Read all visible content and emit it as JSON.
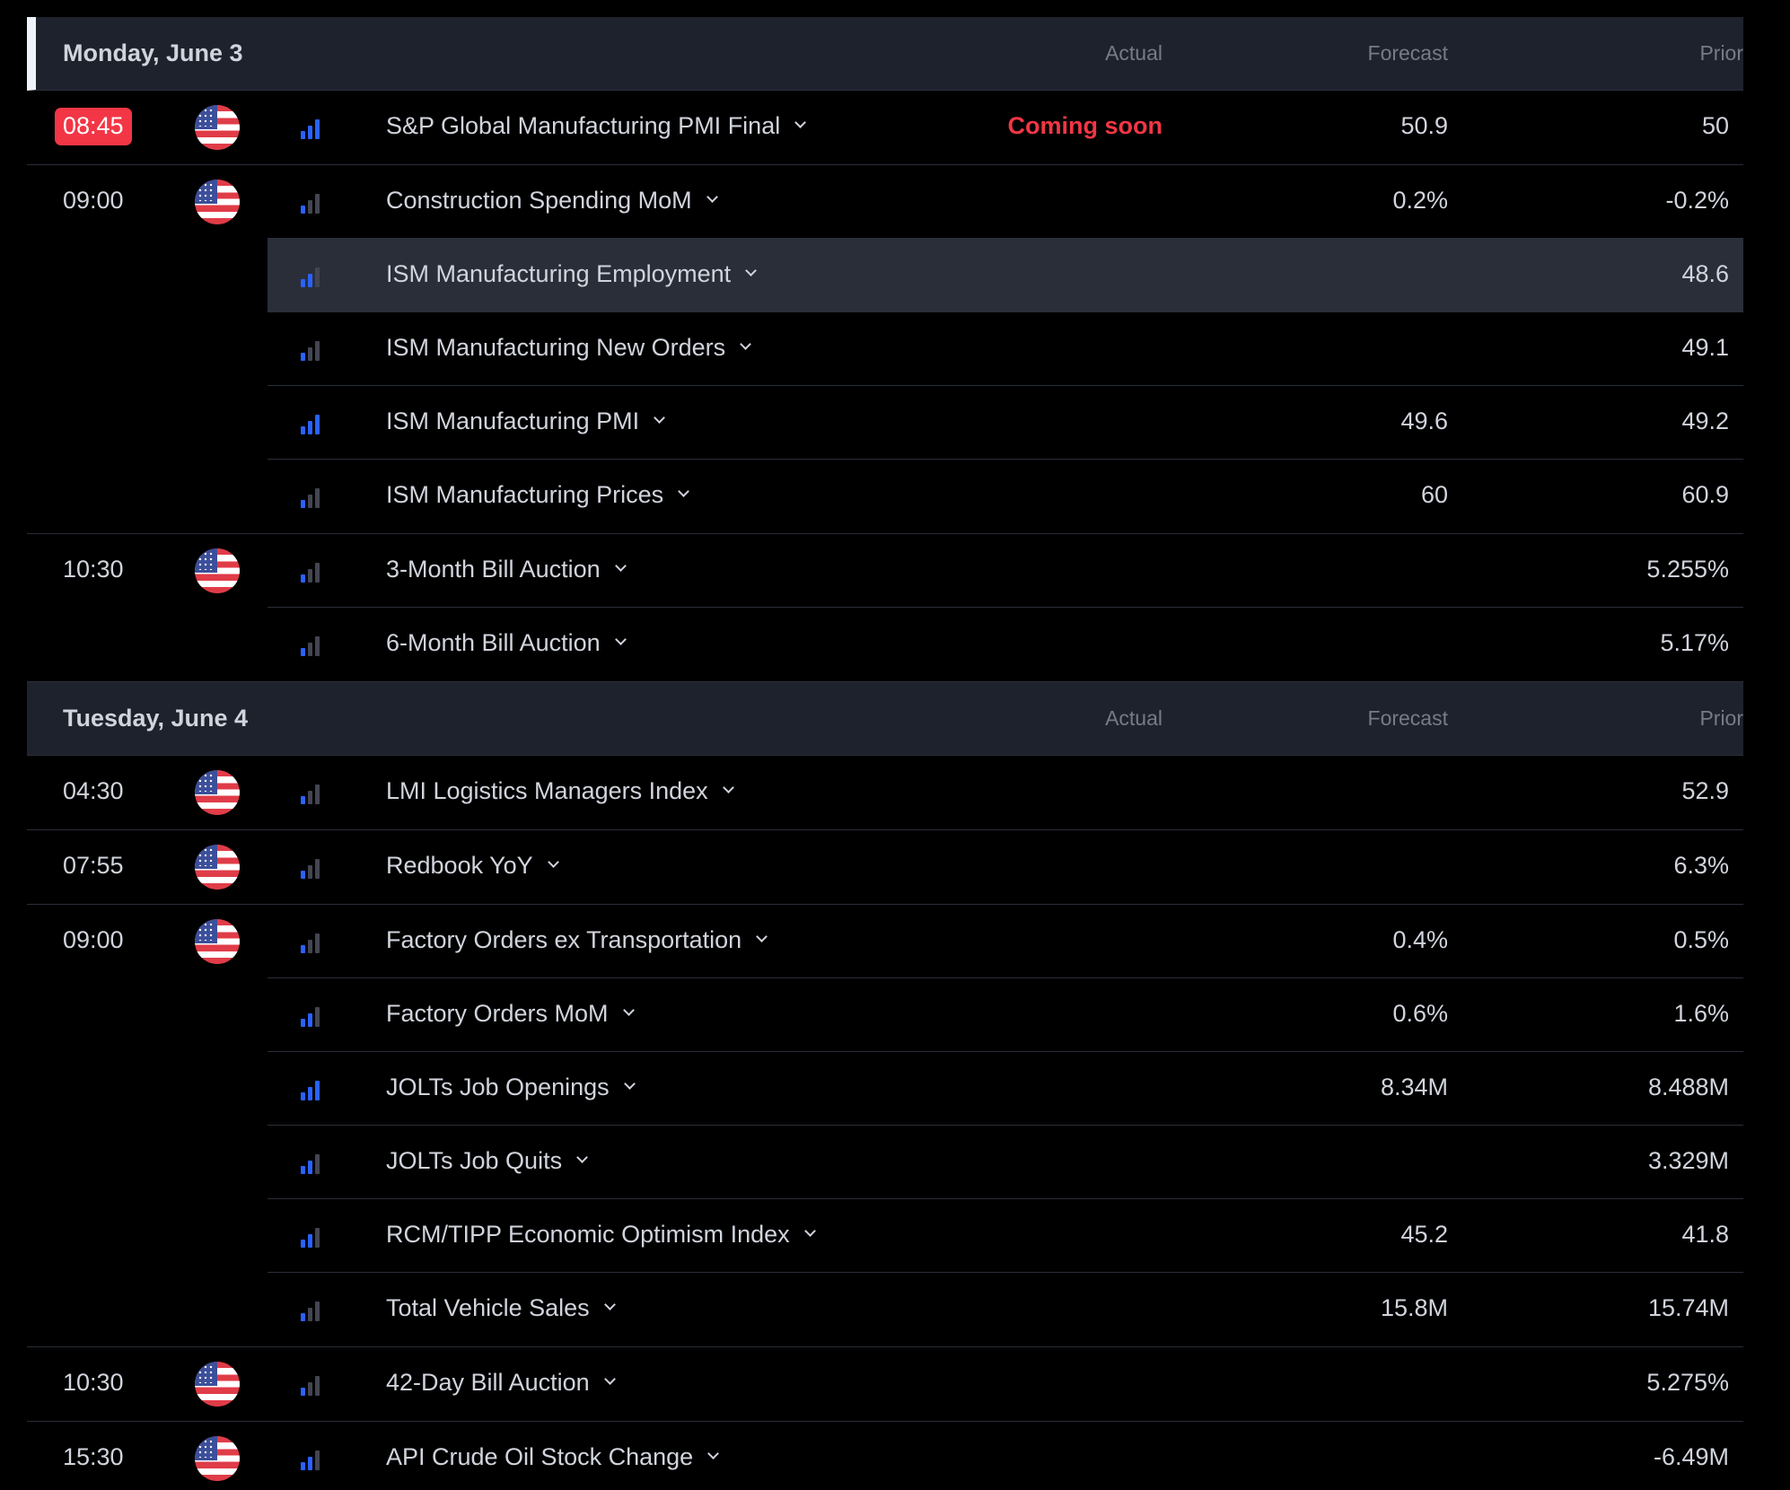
{
  "columns": {
    "actual": "Actual",
    "forecast": "Forecast",
    "prior": "Prior"
  },
  "colors": {
    "background": "#000000",
    "header": "#1e222d",
    "highlight": "#2a2e39",
    "accent_blue": "#2962ff",
    "alert_red": "#f23645"
  },
  "days": [
    {
      "title": "Monday, June 3",
      "groups": [
        {
          "time": "08:45",
          "coming_soon": true,
          "flag": "us-flag-icon",
          "events": [
            {
              "name": "S&P Global Manufacturing PMI Final",
              "importance": 3,
              "actual": "Coming soon",
              "forecast": "50.9",
              "prior": "50"
            }
          ]
        },
        {
          "time": "09:00",
          "flag": "us-flag-icon",
          "events": [
            {
              "name": "Construction Spending MoM",
              "importance": 1,
              "actual": "",
              "forecast": "0.2%",
              "prior": "-0.2%"
            },
            {
              "name": "ISM Manufacturing Employment",
              "importance": 2,
              "actual": "",
              "forecast": "",
              "prior": "48.6",
              "highlight": true
            },
            {
              "name": "ISM Manufacturing New Orders",
              "importance": 1,
              "actual": "",
              "forecast": "",
              "prior": "49.1"
            },
            {
              "name": "ISM Manufacturing PMI",
              "importance": 3,
              "actual": "",
              "forecast": "49.6",
              "prior": "49.2"
            },
            {
              "name": "ISM Manufacturing Prices",
              "importance": 1,
              "actual": "",
              "forecast": "60",
              "prior": "60.9"
            }
          ]
        },
        {
          "time": "10:30",
          "flag": "us-flag-icon",
          "events": [
            {
              "name": "3-Month Bill Auction",
              "importance": 1,
              "actual": "",
              "forecast": "",
              "prior": "5.255%"
            },
            {
              "name": "6-Month Bill Auction",
              "importance": 1,
              "actual": "",
              "forecast": "",
              "prior": "5.17%"
            }
          ]
        }
      ]
    },
    {
      "title": "Tuesday, June 4",
      "groups": [
        {
          "time": "04:30",
          "flag": "us-flag-icon",
          "events": [
            {
              "name": "LMI Logistics Managers Index",
              "importance": 1,
              "actual": "",
              "forecast": "",
              "prior": "52.9"
            }
          ]
        },
        {
          "time": "07:55",
          "flag": "us-flag-icon",
          "events": [
            {
              "name": "Redbook YoY",
              "importance": 1,
              "actual": "",
              "forecast": "",
              "prior": "6.3%"
            }
          ]
        },
        {
          "time": "09:00",
          "flag": "us-flag-icon",
          "events": [
            {
              "name": "Factory Orders ex Transportation",
              "importance": 1,
              "actual": "",
              "forecast": "0.4%",
              "prior": "0.5%"
            },
            {
              "name": "Factory Orders MoM",
              "importance": 2,
              "actual": "",
              "forecast": "0.6%",
              "prior": "1.6%"
            },
            {
              "name": "JOLTs Job Openings",
              "importance": 3,
              "actual": "",
              "forecast": "8.34M",
              "prior": "8.488M"
            },
            {
              "name": "JOLTs Job Quits",
              "importance": 2,
              "actual": "",
              "forecast": "",
              "prior": "3.329M"
            },
            {
              "name": "RCM/TIPP Economic Optimism Index",
              "importance": 2,
              "actual": "",
              "forecast": "45.2",
              "prior": "41.8"
            },
            {
              "name": "Total Vehicle Sales",
              "importance": 1,
              "actual": "",
              "forecast": "15.8M",
              "prior": "15.74M"
            }
          ]
        },
        {
          "time": "10:30",
          "flag": "us-flag-icon",
          "events": [
            {
              "name": "42-Day Bill Auction",
              "importance": 1,
              "actual": "",
              "forecast": "",
              "prior": "5.275%"
            }
          ]
        },
        {
          "time": "15:30",
          "flag": "us-flag-icon",
          "events": [
            {
              "name": "API Crude Oil Stock Change",
              "importance": 2,
              "actual": "",
              "forecast": "",
              "prior": "-6.49M"
            }
          ]
        }
      ]
    }
  ]
}
